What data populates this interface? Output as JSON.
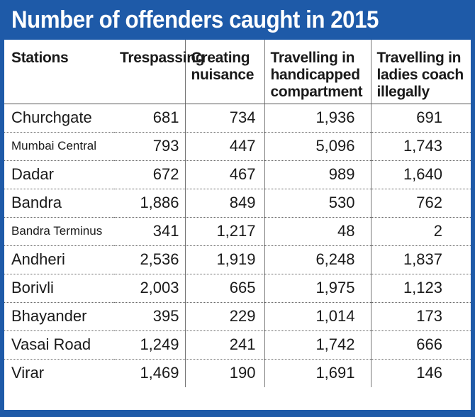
{
  "title": "Number of offenders caught in 2015",
  "colors": {
    "accent": "#1e5aa8",
    "text": "#1a1a1a"
  },
  "headers": [
    [
      "Stations"
    ],
    [
      "Trespassing"
    ],
    [
      "Creating",
      "nuisance"
    ],
    [
      "Travelling in",
      "handicapped",
      "compartment"
    ],
    [
      "Travelling in",
      "ladies coach",
      "illegally"
    ]
  ],
  "chart_data": {
    "type": "table",
    "title": "Number of offenders caught in 2015",
    "columns": [
      "Stations",
      "Trespassing",
      "Creating nuisance",
      "Travelling in handicapped compartment",
      "Travelling in ladies coach illegally"
    ],
    "rows": [
      [
        "Churchgate",
        "681",
        "734",
        "1,936",
        "691"
      ],
      [
        "Mumbai Central",
        "793",
        "447",
        "5,096",
        "1,743"
      ],
      [
        "Dadar",
        "672",
        "467",
        "989",
        "1,640"
      ],
      [
        "Bandra",
        "1,886",
        "849",
        "530",
        "762"
      ],
      [
        "Bandra Terminus",
        "341",
        "1,217",
        "48",
        "2"
      ],
      [
        "Andheri",
        "2,536",
        "1,919",
        "6,248",
        "1,837"
      ],
      [
        "Borivli",
        "2,003",
        "665",
        "1,975",
        "1,123"
      ],
      [
        "Bhayander",
        "395",
        "229",
        "1,014",
        "173"
      ],
      [
        "Vasai Road",
        "1,249",
        "241",
        "1,742",
        "666"
      ],
      [
        "Virar",
        "1,469",
        "190",
        "1,691",
        "146"
      ]
    ]
  }
}
